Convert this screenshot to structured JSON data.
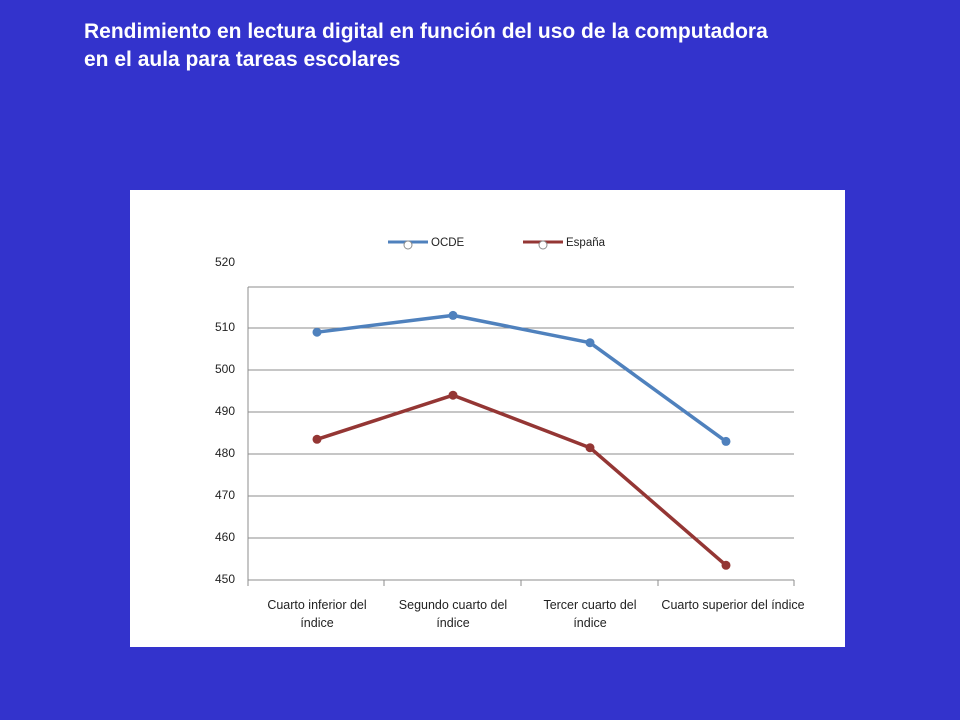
{
  "title": {
    "line1": "Rendimiento en lectura digital en función del uso de la computadora",
    "line2": "en el aula para tareas escolares"
  },
  "chart_data": {
    "type": "line",
    "categories": [
      [
        "Cuarto inferior del",
        "índice"
      ],
      [
        "Segundo cuarto del",
        "índice"
      ],
      [
        "Tercer cuarto del",
        "índice"
      ],
      [
        "Cuarto superior del índice"
      ]
    ],
    "series": [
      {
        "name": "OCDE",
        "color": "#4F81BD",
        "values": [
          509,
          513,
          506.5,
          483
        ]
      },
      {
        "name": "España",
        "color": "#943634",
        "values": [
          483.5,
          494,
          481.5,
          453.5
        ]
      }
    ],
    "yticks": [
      "450",
      "460",
      "470",
      "480",
      "490",
      "500",
      "510",
      "520"
    ],
    "ylim": [
      450,
      520
    ],
    "grid": true,
    "legend_position": "top"
  }
}
